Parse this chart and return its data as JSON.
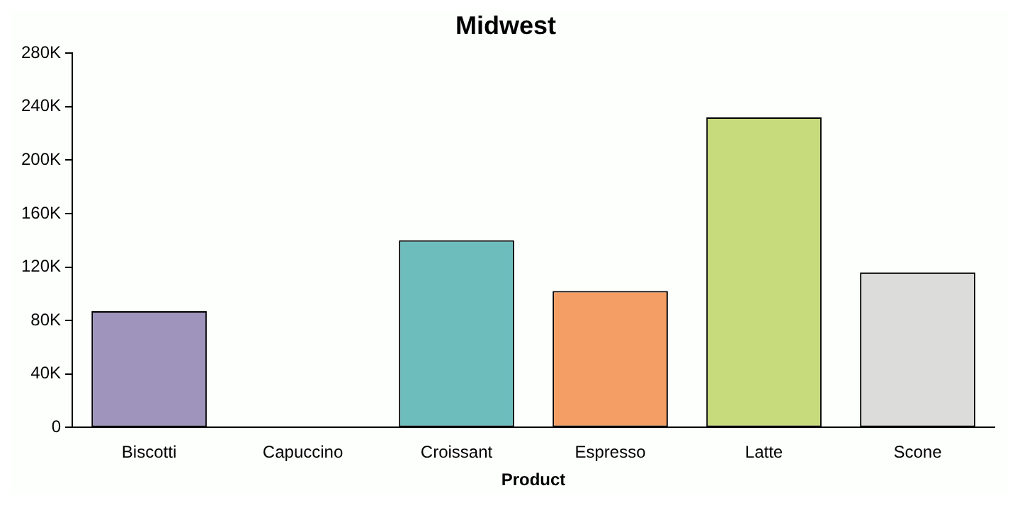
{
  "chart_data": {
    "type": "bar",
    "title": "Midwest",
    "xlabel": "Product",
    "categories": [
      "Biscotti",
      "Capuccino",
      "Croissant",
      "Espresso",
      "Latte",
      "Scone"
    ],
    "values": [
      87000,
      0,
      140000,
      102000,
      232000,
      116000
    ],
    "colors": [
      "#9e94bc",
      "#cfc08e",
      "#6dbdbd",
      "#f49d65",
      "#c7db7d",
      "#dcdddb"
    ],
    "ylim": [
      0,
      280000
    ],
    "yticks": [
      {
        "value": 0,
        "label": "0"
      },
      {
        "value": 40000,
        "label": "40K"
      },
      {
        "value": 80000,
        "label": "80K"
      },
      {
        "value": 120000,
        "label": "120K"
      },
      {
        "value": 160000,
        "label": "160K"
      },
      {
        "value": 200000,
        "label": "200K"
      },
      {
        "value": 240000,
        "label": "240K"
      },
      {
        "value": 280000,
        "label": "280K"
      }
    ],
    "grid": false,
    "legend": false
  }
}
